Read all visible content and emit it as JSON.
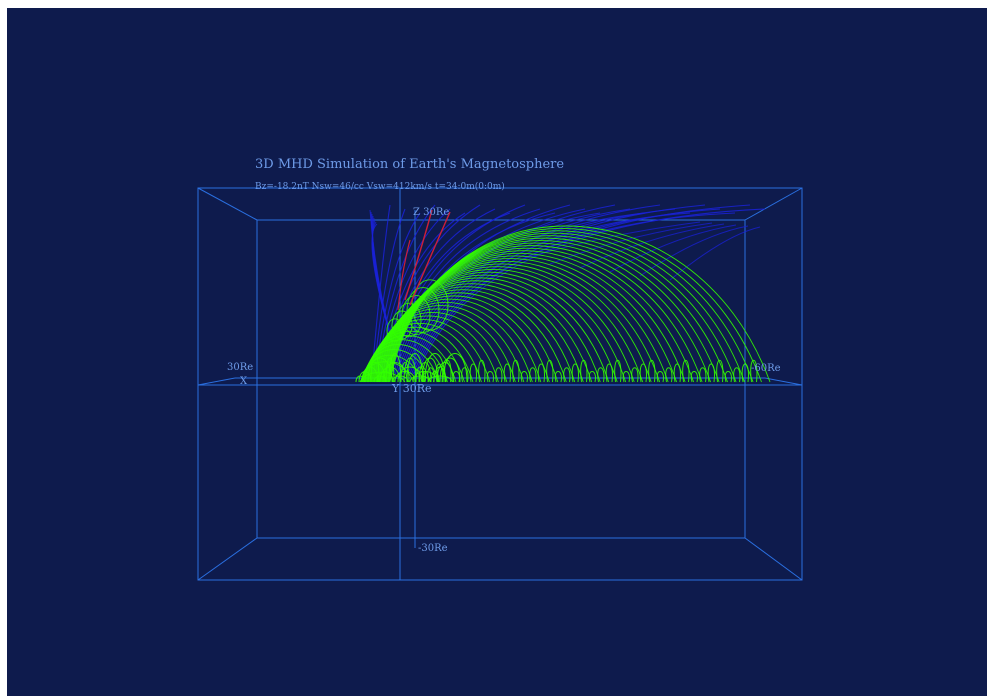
{
  "title": "3D MHD Simulation of Earth's Magnetosphere",
  "params": "Bz=-18.2nT Nsw=46/cc Vsw=412km/s t=34:0m(0:0m)",
  "axes": {
    "z_top": "Z 30Re",
    "z_bottom": "-30Re",
    "x_left_value": "30Re",
    "x_left_letter": "X",
    "x_right_value": "-60Re",
    "y_label": "Y 30Re"
  },
  "colors": {
    "background": "#0e1b4d",
    "box": "#2a6fe0",
    "label": "#6e9be8",
    "closed_field_lines": "#33ff00",
    "open_field_lines": "#1a22d8",
    "highlight_lines": "#cc1f3a"
  }
}
